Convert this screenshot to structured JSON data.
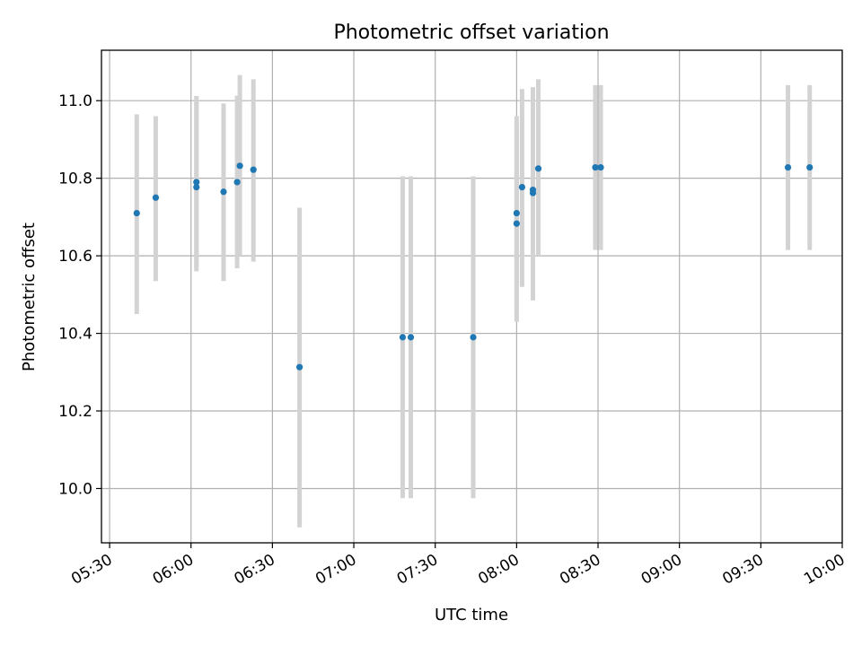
{
  "chart_data": {
    "type": "scatter",
    "title": "Photometric offset variation",
    "xlabel": "UTC time",
    "ylabel": "Photometric offset",
    "x_tick_labels": [
      "05:30",
      "06:00",
      "06:30",
      "07:00",
      "07:30",
      "08:00",
      "08:30",
      "09:00",
      "09:30",
      "10:00"
    ],
    "y_tick_labels": [
      "10.0",
      "10.2",
      "10.4",
      "10.6",
      "10.8",
      "11.0"
    ],
    "xlim": [
      "05:27",
      "10:00"
    ],
    "ylim": [
      9.86,
      11.13
    ],
    "grid": true,
    "error_bars": true,
    "colors": {
      "points": "#1f77b4",
      "error_bars": "#d3d3d3"
    },
    "points": [
      {
        "x": "05:40",
        "y": 10.71,
        "yerr_low": 10.45,
        "yerr_high": 10.965
      },
      {
        "x": "05:47",
        "y": 10.75,
        "yerr_low": 10.535,
        "yerr_high": 10.96
      },
      {
        "x": "06:02",
        "y": 10.777,
        "yerr_low": 10.56,
        "yerr_high": 10.995
      },
      {
        "x": "06:02",
        "y": 10.79,
        "yerr_low": 10.57,
        "yerr_high": 11.012
      },
      {
        "x": "06:12",
        "y": 10.765,
        "yerr_low": 10.535,
        "yerr_high": 10.993
      },
      {
        "x": "06:17",
        "y": 10.79,
        "yerr_low": 10.568,
        "yerr_high": 11.013
      },
      {
        "x": "06:18",
        "y": 10.832,
        "yerr_low": 10.6,
        "yerr_high": 11.066
      },
      {
        "x": "06:23",
        "y": 10.822,
        "yerr_low": 10.585,
        "yerr_high": 11.055
      },
      {
        "x": "06:40",
        "y": 10.313,
        "yerr_low": 9.9,
        "yerr_high": 10.724
      },
      {
        "x": "07:18",
        "y": 10.39,
        "yerr_low": 9.975,
        "yerr_high": 10.805
      },
      {
        "x": "07:21",
        "y": 10.39,
        "yerr_low": 9.975,
        "yerr_high": 10.805
      },
      {
        "x": "07:44",
        "y": 10.39,
        "yerr_low": 9.975,
        "yerr_high": 10.805
      },
      {
        "x": "08:00",
        "y": 10.683,
        "yerr_low": 10.43,
        "yerr_high": 10.94
      },
      {
        "x": "08:00",
        "y": 10.71,
        "yerr_low": 10.46,
        "yerr_high": 10.96
      },
      {
        "x": "08:02",
        "y": 10.777,
        "yerr_low": 10.52,
        "yerr_high": 11.03
      },
      {
        "x": "08:06",
        "y": 10.77,
        "yerr_low": 10.51,
        "yerr_high": 11.03
      },
      {
        "x": "08:06",
        "y": 10.762,
        "yerr_low": 10.485,
        "yerr_high": 11.035
      },
      {
        "x": "08:08",
        "y": 10.825,
        "yerr_low": 10.6,
        "yerr_high": 11.055
      },
      {
        "x": "08:29",
        "y": 10.828,
        "yerr_low": 10.615,
        "yerr_high": 11.04
      },
      {
        "x": "08:31",
        "y": 10.828,
        "yerr_low": 10.615,
        "yerr_high": 11.04
      },
      {
        "x": "09:40",
        "y": 10.828,
        "yerr_low": 10.615,
        "yerr_high": 11.04
      },
      {
        "x": "09:48",
        "y": 10.828,
        "yerr_low": 10.615,
        "yerr_high": 11.04
      }
    ]
  }
}
